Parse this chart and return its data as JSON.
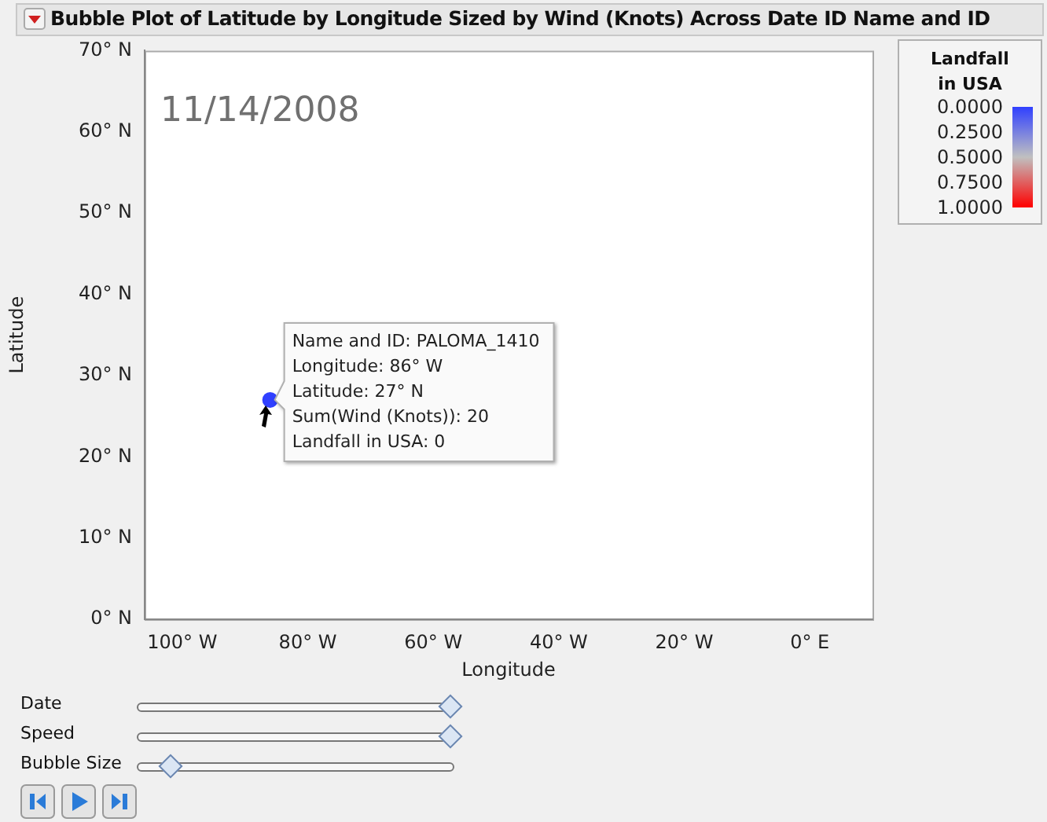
{
  "chart_data": {
    "type": "bubble",
    "title": "Bubble Plot of Latitude by Longitude Sized by Wind (Knots) Across Date ID Name and ID",
    "xlabel": "Longitude",
    "ylabel": "Latitude",
    "clabel": "Landfall in USA",
    "x": [
      -86
    ],
    "values": [
      27
    ],
    "sizes": [
      1
    ],
    "cvalues": [
      0
    ],
    "xlim": [
      -106,
      10
    ],
    "xticks": [
      {
        "value": -100,
        "label": "100° W"
      },
      {
        "value": -80,
        "label": "80° W"
      },
      {
        "value": -60,
        "label": "60° W"
      },
      {
        "value": -40,
        "label": "40° W"
      },
      {
        "value": -20,
        "label": "20° W"
      },
      {
        "value": 0,
        "label": "0° E"
      }
    ],
    "ylim": [
      0,
      70
    ],
    "yticks": [
      {
        "value": 0,
        "label": "0° N"
      },
      {
        "value": 10,
        "label": "10° N"
      },
      {
        "value": 20,
        "label": "20° N"
      },
      {
        "value": 30,
        "label": "30° N"
      },
      {
        "value": 40,
        "label": "40° N"
      },
      {
        "value": 50,
        "label": "50° N"
      },
      {
        "value": 60,
        "label": "60° N"
      },
      {
        "value": 70,
        "label": "70° N"
      }
    ],
    "clim": [
      0,
      1
    ],
    "cticks": [
      {
        "value": 0,
        "label": "0.0000"
      },
      {
        "value": 0.25,
        "label": "0.2500"
      },
      {
        "value": 0.5,
        "label": "0.5000"
      },
      {
        "value": 0.75,
        "label": "0.7500"
      },
      {
        "value": 1,
        "label": "1.0000"
      }
    ],
    "grid": false,
    "annotations": [
      "11/14/2008",
      {
        "text": "Name and ID: PALOMA_1410\nLongitude: 86° W\nLatitude: 27° N\nSum(Wind (Knots)): 20\nLandfall in USA: 0",
        "x": -86,
        "y": 27
      },
      "Date",
      "Speed",
      "Bubble Size"
    ]
  }
}
